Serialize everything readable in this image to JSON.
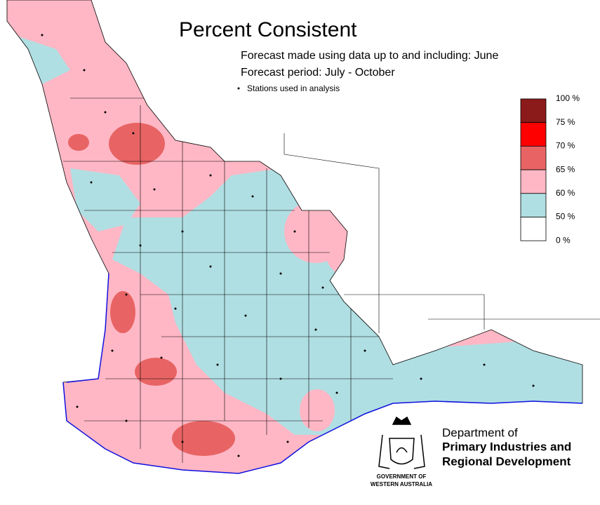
{
  "header": {
    "title": "Percent Consistent",
    "lines": [
      "Forecast made using data up to and including: June",
      "Forecast period: July - October"
    ],
    "stations_note": "Stations used in analysis"
  },
  "legend": {
    "labels": [
      "100 %",
      "75 %",
      "70 %",
      "65 %",
      "60 %",
      "50 %",
      "0 %"
    ],
    "colors": [
      "#8b1a1a",
      "#ff0000",
      "#e86464",
      "#ffb7c5",
      "#b0dfe3",
      "#ffffff"
    ]
  },
  "footer": {
    "department": [
      "Department of",
      "Primary Industries and",
      "Regional Development"
    ],
    "government": [
      "GOVERNMENT OF",
      "WESTERN AUSTRALIA"
    ]
  }
}
